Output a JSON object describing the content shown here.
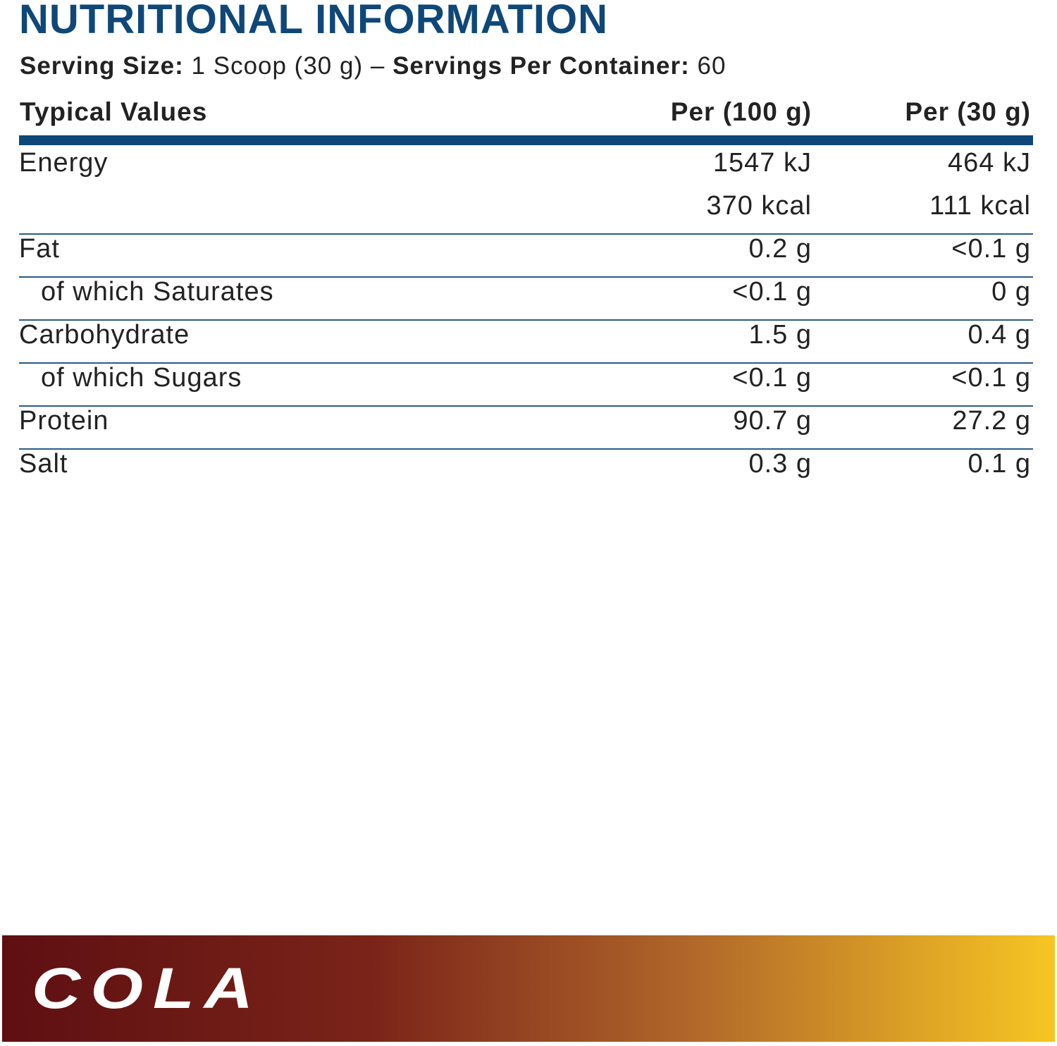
{
  "title": "NUTRITIONAL INFORMATION",
  "serving": {
    "size_label": "Serving Size:",
    "size": "1 Scoop (30 g)",
    "separator": "–",
    "servings_label": "Servings Per Container:",
    "servings": "60"
  },
  "table": {
    "header": [
      "Typical Values",
      "Per (100 g)",
      "Per (30 g)"
    ],
    "rows": [
      {
        "label": "Energy",
        "per_100g": [
          "1547 kJ",
          "370 kcal"
        ],
        "per_serving": [
          "464 kJ",
          "111 kcal"
        ]
      },
      {
        "label": "Fat",
        "per_100g": [
          "0.2 g"
        ],
        "per_serving": [
          "<0.1 g"
        ]
      },
      {
        "label": "of which Saturates",
        "sub": true,
        "per_100g": [
          "<0.1 g"
        ],
        "per_serving": [
          "0 g"
        ]
      },
      {
        "label": "Carbohydrate",
        "per_100g": [
          "1.5 g"
        ],
        "per_serving": [
          "0.4 g"
        ]
      },
      {
        "label": "of which Sugars",
        "sub": true,
        "per_100g": [
          "<0.1 g"
        ],
        "per_serving": [
          "<0.1 g"
        ]
      },
      {
        "label": "Protein",
        "per_100g": [
          "90.7 g"
        ],
        "per_serving": [
          "27.2 g"
        ]
      },
      {
        "label": "Salt",
        "per_100g": [
          "0.3 g"
        ],
        "per_serving": [
          "0.1 g"
        ]
      }
    ]
  },
  "banner": {
    "flavor": "COLA"
  }
}
